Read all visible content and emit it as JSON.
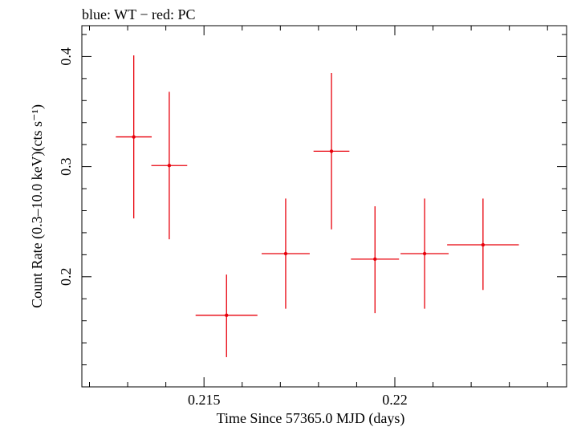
{
  "chart_data": {
    "type": "scatter",
    "title": "blue: WT − red: PC",
    "xlabel": "Time Since 57365.0 MJD (days)",
    "ylabel": "Count Rate (0.3–10.0 keV)(cts s⁻¹)",
    "xlim": [
      0.2118,
      0.2245
    ],
    "ylim": [
      0.1,
      0.428
    ],
    "x_ticks": [
      {
        "value": 0.215,
        "label": "0.215"
      },
      {
        "value": 0.22,
        "label": "0.22"
      }
    ],
    "y_ticks": [
      {
        "value": 0.2,
        "label": "0.2"
      },
      {
        "value": 0.3,
        "label": "0.3"
      },
      {
        "value": 0.4,
        "label": "0.4"
      }
    ],
    "grid": false,
    "series": [
      {
        "color": "#e8000b",
        "points": [
          {
            "x": 0.21316,
            "y": 0.327,
            "xerr": 0.00047,
            "ylo": 0.253,
            "yhi": 0.401
          },
          {
            "x": 0.21409,
            "y": 0.301,
            "xerr": 0.00047,
            "ylo": 0.234,
            "yhi": 0.368
          },
          {
            "x": 0.21559,
            "y": 0.165,
            "xerr": 0.00081,
            "ylo": 0.127,
            "yhi": 0.202
          },
          {
            "x": 0.21714,
            "y": 0.221,
            "xerr": 0.00063,
            "ylo": 0.171,
            "yhi": 0.271
          },
          {
            "x": 0.21834,
            "y": 0.314,
            "xerr": 0.00047,
            "ylo": 0.243,
            "yhi": 0.385
          },
          {
            "x": 0.21948,
            "y": 0.216,
            "xerr": 0.00063,
            "ylo": 0.167,
            "yhi": 0.264
          },
          {
            "x": 0.22078,
            "y": 0.221,
            "xerr": 0.00063,
            "ylo": 0.171,
            "yhi": 0.271
          },
          {
            "x": 0.22231,
            "y": 0.229,
            "xerr": 0.00094,
            "ylo": 0.188,
            "yhi": 0.271
          }
        ]
      }
    ]
  }
}
